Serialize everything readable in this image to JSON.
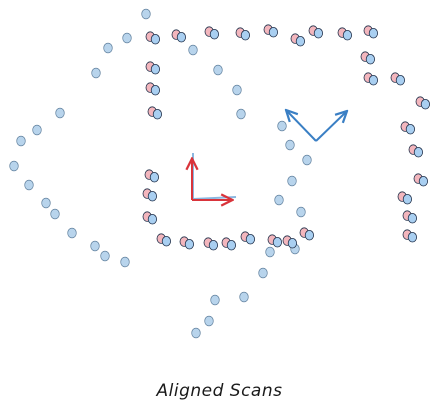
{
  "caption": "Aligned Scans",
  "colors": {
    "faint_scan": "#b8d4ec",
    "faint_scan_stroke": "#5f7f9c",
    "red_scan": "#f3b6bd",
    "blue_scan": "#a9cff1",
    "point_stroke": "#20304a",
    "frame_red": "#d9343b",
    "frame_blue": "#3a7fc4",
    "frame_blue_light": "#7fb0dd"
  },
  "icons": [
    "reference-frame-axes",
    "target-frame-axes"
  ]
}
